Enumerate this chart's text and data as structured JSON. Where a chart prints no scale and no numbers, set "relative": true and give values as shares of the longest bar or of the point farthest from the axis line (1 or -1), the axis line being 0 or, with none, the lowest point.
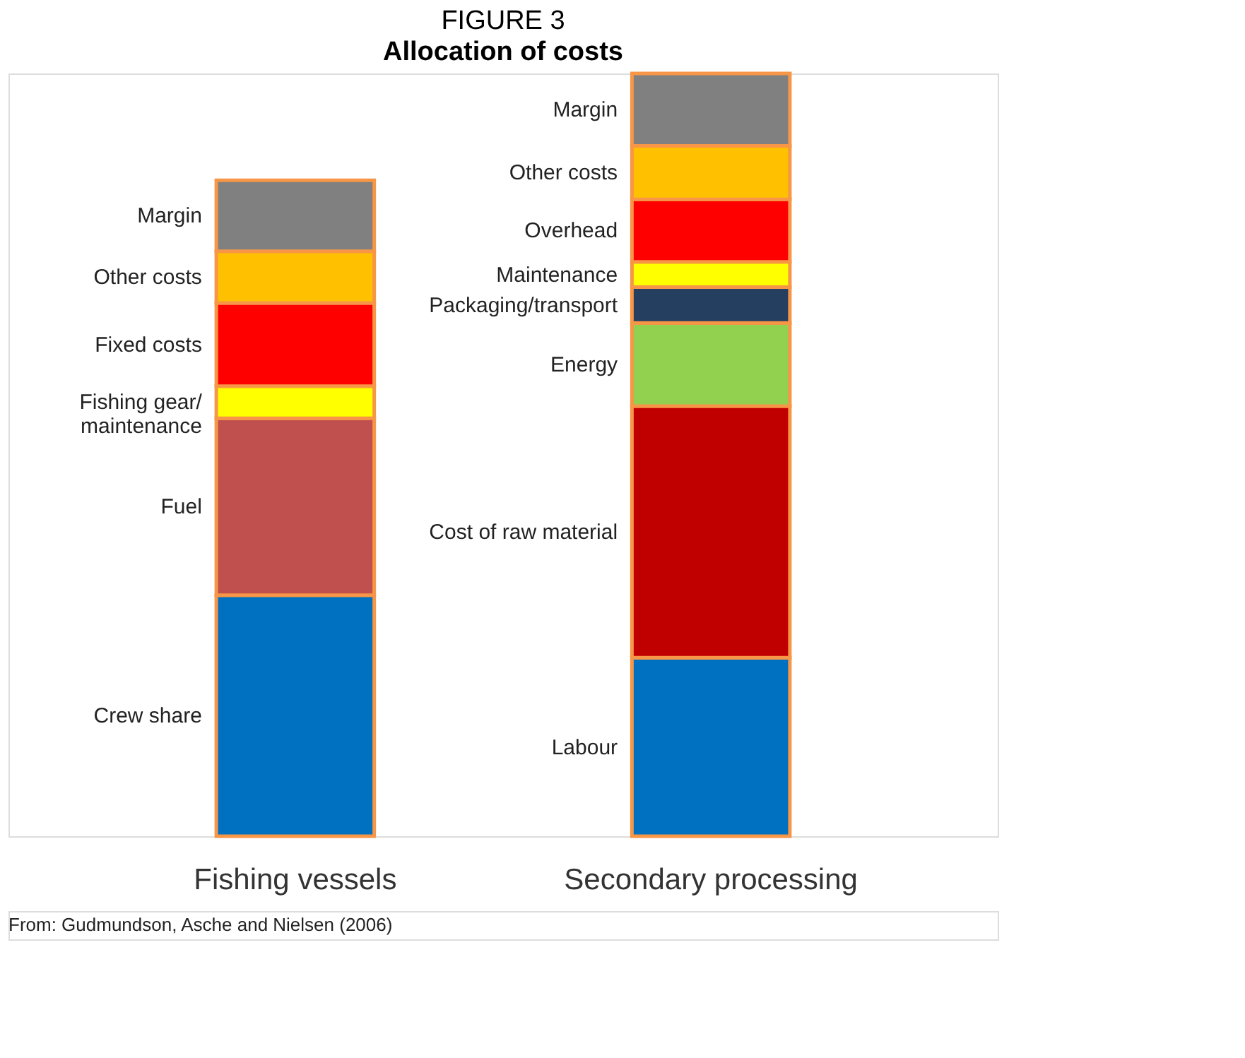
{
  "chart_data": {
    "type": "bar",
    "title": "FIGURE 3",
    "subtitle": "Allocation of costs",
    "categories": [
      "Fishing vessels",
      "Secondary processing"
    ],
    "stacked": true,
    "relative": true,
    "legend": false,
    "grid": false,
    "series": [
      {
        "name": "Crew share",
        "color": "#0070c0",
        "values": [
          0.316,
          null
        ]
      },
      {
        "name": "Fuel",
        "color": "#c0504d",
        "values": [
          0.232,
          null
        ]
      },
      {
        "name": "Fishing gear/\nmaintenance",
        "color": "#ffff00",
        "values": [
          0.042,
          null
        ]
      },
      {
        "name": "Fixed costs",
        "color": "#ff0000",
        "values": [
          0.109,
          null
        ]
      },
      {
        "name": "Labour",
        "color": "#0070c0",
        "values": [
          null,
          0.234
        ]
      },
      {
        "name": "Cost of raw material",
        "color": "#c00000",
        "values": [
          null,
          0.33
        ]
      },
      {
        "name": "Energy",
        "color": "#92d050",
        "values": [
          null,
          0.109
        ]
      },
      {
        "name": "Packaging/transport",
        "color": "#243f60",
        "values": [
          null,
          0.047
        ]
      },
      {
        "name": "Maintenance",
        "color": "#ffff00",
        "values": [
          null,
          0.033
        ]
      },
      {
        "name": "Overhead",
        "color": "#ff0000",
        "values": [
          null,
          0.082
        ]
      },
      {
        "name": "Other costs",
        "color": "#ffc000",
        "values": [
          0.068,
          0.07
        ]
      },
      {
        "name": "Margin",
        "color": "#808080",
        "values": [
          0.093,
          0.095
        ]
      }
    ],
    "annotations": [
      "From: Gudmundson, Asche and Nielsen (2006)"
    ]
  }
}
